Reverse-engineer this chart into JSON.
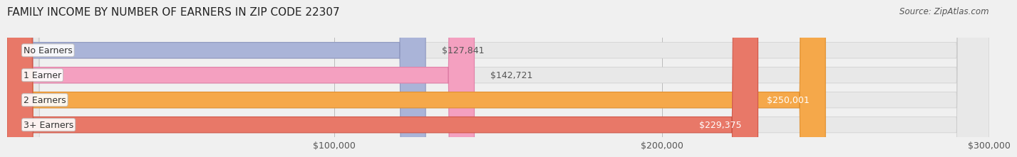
{
  "title": "FAMILY INCOME BY NUMBER OF EARNERS IN ZIP CODE 22307",
  "source": "Source: ZipAtlas.com",
  "categories": [
    "No Earners",
    "1 Earner",
    "2 Earners",
    "3+ Earners"
  ],
  "values": [
    127841,
    142721,
    250001,
    229375
  ],
  "bar_colors": [
    "#aab4d8",
    "#f4a0c0",
    "#f5a84a",
    "#e87868"
  ],
  "bar_edge_colors": [
    "#9099c0",
    "#e080a8",
    "#e09030",
    "#d05848"
  ],
  "label_colors": [
    "#555555",
    "#555555",
    "#ffffff",
    "#ffffff"
  ],
  "value_labels": [
    "$127,841",
    "$142,721",
    "$250,001",
    "$229,375"
  ],
  "xlim": [
    0,
    300000
  ],
  "xticks": [
    100000,
    200000,
    300000
  ],
  "xtick_labels": [
    "$100,000",
    "$200,000",
    "$300,000"
  ],
  "background_color": "#f0f0f0",
  "bar_background_color": "#e8e8e8",
  "title_fontsize": 11,
  "source_fontsize": 8.5,
  "bar_label_fontsize": 9,
  "tick_fontsize": 9
}
